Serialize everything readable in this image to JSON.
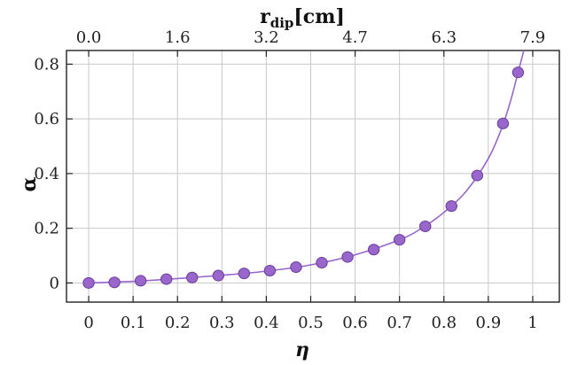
{
  "chart_data": {
    "type": "scatter",
    "title": "",
    "xlabel": "η",
    "ylabel": "α",
    "top_axis_label": {
      "main": "r",
      "subscript": "dip",
      "unit": "[cm]"
    },
    "xlim": [
      -0.05,
      1.06
    ],
    "ylim": [
      -0.07,
      0.85
    ],
    "x_ticks": [
      0,
      0.1,
      0.2,
      0.3,
      0.4,
      0.5,
      0.6,
      0.7,
      0.8,
      0.9,
      1
    ],
    "x_tick_labels": [
      "0",
      "0.1",
      "0.2",
      "0.3",
      "0.4",
      "0.5",
      "0.6",
      "0.7",
      "0.8",
      "0.9",
      "1"
    ],
    "y_ticks": [
      0,
      0.2,
      0.4,
      0.6,
      0.8
    ],
    "y_tick_labels": [
      "0",
      "0.2",
      "0.4",
      "0.6",
      "0.8"
    ],
    "top_ticks": [
      0,
      0.2,
      0.4,
      0.6,
      0.8,
      1
    ],
    "top_tick_labels": [
      "0.0",
      "1.6",
      "3.2",
      "4.7",
      "6.3",
      "7.9"
    ],
    "grid": true,
    "color": "#9966cc",
    "marker_edge_color": "#6a3d99",
    "series": [
      {
        "x": [
          0.0,
          0.058,
          0.117,
          0.175,
          0.233,
          0.292,
          0.35,
          0.408,
          0.467,
          0.525,
          0.583,
          0.642,
          0.7,
          0.758,
          0.817,
          0.875,
          0.933,
          0.967
        ],
        "y": [
          0.0,
          0.002,
          0.008,
          0.014,
          0.02,
          0.027,
          0.035,
          0.045,
          0.058,
          0.074,
          0.095,
          0.122,
          0.158,
          0.207,
          0.281,
          0.393,
          0.583,
          0.77
        ]
      }
    ],
    "curve": {
      "x": [
        0.0,
        0.1,
        0.2,
        0.3,
        0.4,
        0.5,
        0.6,
        0.7,
        0.75,
        0.8,
        0.85,
        0.9,
        0.93,
        0.95,
        0.967,
        0.98
      ],
      "y": [
        0.0,
        0.006,
        0.016,
        0.028,
        0.043,
        0.066,
        0.103,
        0.158,
        0.2,
        0.258,
        0.335,
        0.455,
        0.565,
        0.665,
        0.77,
        0.85
      ]
    }
  }
}
